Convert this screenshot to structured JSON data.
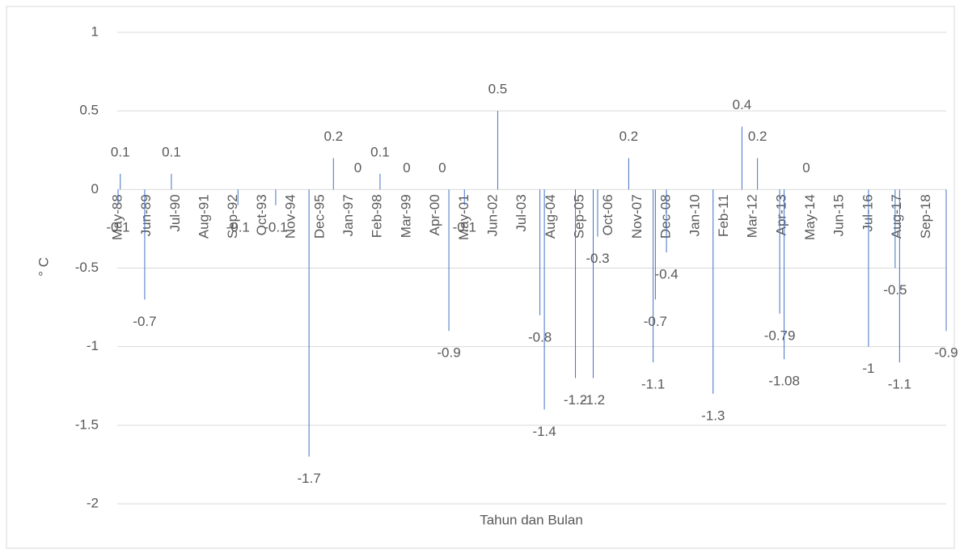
{
  "chart_data": {
    "type": "bar",
    "x_label": "Tahun dan Bulan",
    "y_label": "° C",
    "color": "#4472c4",
    "grid": true,
    "ylim": [
      -2,
      1
    ],
    "yticks": [
      -2,
      -1.5,
      -1,
      -0.5,
      0,
      0.5,
      1
    ],
    "categories": [
      "May-88",
      null,
      null,
      null,
      null,
      null,
      null,
      null,
      null,
      null,
      null,
      null,
      null,
      "Jun-89",
      null,
      null,
      null,
      null,
      null,
      null,
      null,
      null,
      null,
      null,
      null,
      null,
      "Jul-90",
      null,
      null,
      null,
      null,
      null,
      null,
      null,
      null,
      null,
      null,
      null,
      null,
      "Aug-91",
      null,
      null,
      null,
      null,
      null,
      null,
      null,
      null,
      null,
      null,
      null,
      null,
      "Sep-92",
      null,
      null,
      null,
      null,
      null,
      null,
      null,
      null,
      null,
      null,
      null,
      null,
      "Oct-93",
      null,
      null,
      null,
      null,
      null,
      null,
      null,
      null,
      null,
      null,
      null,
      null,
      "Nov-94",
      null,
      null,
      null,
      null,
      null,
      null,
      null,
      null,
      null,
      null,
      null,
      null,
      "Dec-95",
      null,
      null,
      null,
      null,
      null,
      null,
      null,
      null,
      null,
      null,
      null,
      null,
      "Jan-97",
      null,
      null,
      null,
      null,
      null,
      null,
      null,
      null,
      null,
      null,
      null,
      null,
      "Feb-98",
      null,
      null,
      null,
      null,
      null,
      null,
      null,
      null,
      null,
      null,
      null,
      null,
      "Mar-99",
      null,
      null,
      null,
      null,
      null,
      null,
      null,
      null,
      null,
      null,
      null,
      null,
      "Apr-00",
      null,
      null,
      null,
      null,
      null,
      null,
      null,
      null,
      null,
      null,
      null,
      null,
      "May-01",
      null,
      null,
      null,
      null,
      null,
      null,
      null,
      null,
      null,
      null,
      null,
      null,
      "Jun-02",
      null,
      null,
      null,
      null,
      null,
      null,
      null,
      null,
      null,
      null,
      null,
      null,
      "Jul-03",
      null,
      null,
      null,
      null,
      null,
      null,
      null,
      null,
      null,
      null,
      null,
      null,
      "Aug-04",
      null,
      null,
      null,
      null,
      null,
      null,
      null,
      null,
      null,
      null,
      null,
      null,
      "Sep-05",
      null,
      null,
      null,
      null,
      null,
      null,
      null,
      null,
      null,
      null,
      null,
      null,
      "Oct-06",
      null,
      null,
      null,
      null,
      null,
      null,
      null,
      null,
      null,
      null,
      null,
      null,
      "Nov-07",
      null,
      null,
      null,
      null,
      null,
      null,
      null,
      null,
      null,
      null,
      null,
      null,
      "Dec-08",
      null,
      null,
      null,
      null,
      null,
      null,
      null,
      null,
      null,
      null,
      null,
      null,
      "Jan-10",
      null,
      null,
      null,
      null,
      null,
      null,
      null,
      null,
      null,
      null,
      null,
      null,
      "Feb-11",
      null,
      null,
      null,
      null,
      null,
      null,
      null,
      null,
      null,
      null,
      null,
      null,
      "Mar-12",
      null,
      null,
      null,
      null,
      null,
      null,
      null,
      null,
      null,
      null,
      null,
      null,
      "Apr-13",
      null,
      null,
      null,
      null,
      null,
      null,
      null,
      null,
      null,
      null,
      null,
      null,
      "May-14",
      null,
      null,
      null,
      null,
      null,
      null,
      null,
      null,
      null,
      null,
      null,
      null,
      "Jun-15",
      null,
      null,
      null,
      null,
      null,
      null,
      null,
      null,
      null,
      null,
      null,
      null,
      "Jul-16",
      null,
      null,
      null,
      null,
      null,
      null,
      null,
      null,
      null,
      null,
      null,
      null,
      "Aug-17",
      null,
      null,
      null,
      null,
      null,
      null,
      null,
      null,
      null,
      null,
      null,
      null,
      "Sep-18",
      null,
      null,
      null,
      null,
      null,
      null,
      null,
      null,
      null
    ],
    "values": [
      -0.1,
      0.1,
      null,
      null,
      null,
      null,
      null,
      null,
      null,
      null,
      null,
      null,
      -0.7,
      null,
      null,
      null,
      null,
      null,
      null,
      null,
      null,
      null,
      null,
      null,
      0.1,
      null,
      null,
      null,
      null,
      null,
      null,
      null,
      null,
      null,
      null,
      null,
      null,
      null,
      null,
      null,
      null,
      null,
      null,
      null,
      null,
      null,
      null,
      null,
      null,
      null,
      null,
      null,
      null,
      null,
      -0.1,
      null,
      null,
      null,
      null,
      null,
      null,
      null,
      null,
      null,
      null,
      null,
      null,
      null,
      null,
      null,
      null,
      -0.1,
      null,
      null,
      null,
      null,
      null,
      null,
      null,
      null,
      null,
      null,
      null,
      null,
      null,
      null,
      -1.7,
      null,
      null,
      null,
      null,
      null,
      null,
      null,
      null,
      null,
      null,
      0.2,
      null,
      null,
      null,
      null,
      null,
      null,
      null,
      null,
      null,
      null,
      0,
      null,
      null,
      null,
      null,
      null,
      null,
      null,
      null,
      null,
      0.1,
      null,
      null,
      null,
      null,
      null,
      null,
      null,
      null,
      null,
      null,
      null,
      0,
      null,
      null,
      null,
      null,
      null,
      null,
      null,
      null,
      null,
      null,
      null,
      null,
      null,
      null,
      null,
      0,
      null,
      null,
      -0.9,
      null,
      null,
      null,
      null,
      null,
      null,
      -0.1,
      null,
      null,
      null,
      null,
      null,
      null,
      null,
      null,
      null,
      null,
      null,
      null,
      null,
      null,
      0.5,
      null,
      null,
      null,
      null,
      null,
      null,
      null,
      null,
      null,
      null,
      null,
      null,
      null,
      null,
      null,
      null,
      null,
      null,
      -0.8,
      null,
      -1.4,
      null,
      null,
      null,
      null,
      null,
      null,
      null,
      null,
      null,
      null,
      null,
      null,
      null,
      -1.2,
      null,
      null,
      null,
      null,
      null,
      null,
      null,
      -1.2,
      null,
      -0.3,
      null,
      null,
      null,
      null,
      null,
      null,
      null,
      null,
      null,
      null,
      null,
      null,
      null,
      0.2,
      null,
      null,
      null,
      null,
      null,
      null,
      null,
      null,
      null,
      null,
      -1.1,
      -0.7,
      null,
      null,
      null,
      null,
      -0.4,
      null,
      null,
      null,
      null,
      null,
      null,
      null,
      null,
      null,
      null,
      null,
      null,
      null,
      null,
      null,
      null,
      null,
      null,
      null,
      null,
      -1.3,
      null,
      null,
      null,
      null,
      null,
      null,
      null,
      null,
      null,
      null,
      null,
      null,
      0.4,
      null,
      null,
      null,
      null,
      null,
      null,
      0.2,
      null,
      null,
      null,
      null,
      null,
      null,
      null,
      null,
      null,
      -0.79,
      null,
      -1.08,
      null,
      null,
      null,
      null,
      null,
      null,
      null,
      null,
      null,
      0,
      null,
      null,
      null,
      null,
      null,
      null,
      null,
      null,
      null,
      null,
      null,
      null,
      null,
      null,
      null,
      null,
      null,
      null,
      null,
      null,
      null,
      null,
      null,
      null,
      null,
      null,
      null,
      -1,
      null,
      null,
      null,
      null,
      null,
      null,
      null,
      null,
      null,
      null,
      null,
      -0.5,
      null,
      -1.1,
      null,
      null,
      null,
      null,
      null,
      null,
      null,
      null,
      null,
      null,
      null,
      null,
      null,
      null,
      null,
      null,
      null,
      null,
      null,
      null,
      -0.9
    ]
  }
}
